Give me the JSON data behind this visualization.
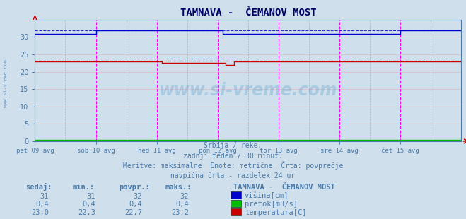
{
  "title": "TAMNAVA -  ČEMANOV MOST",
  "background_color": "#cfe0ec",
  "plot_bg_color": "#cfe0ec",
  "text_color": "#4a7aaa",
  "grid_color_h": "#e8a0a0",
  "grid_color_v": "#ff80ff",
  "watermark": "www.si-vreme.com",
  "subtitle_lines": [
    "Srbija / reke.",
    "zadnji teden / 30 minut.",
    "Meritve: maksimalne  Enote: metrične  Črta: povprečje",
    "navpična črta - razdelek 24 ur"
  ],
  "x_tick_labels": [
    "pet 09 avg",
    "sob 10 avg",
    "ned 11 avg",
    "pon 12 avg",
    "tor 13 avg",
    "sre 14 avg",
    "čet 15 avg"
  ],
  "x_tick_positions": [
    0,
    48,
    96,
    144,
    192,
    240,
    288
  ],
  "ylim": [
    0,
    35
  ],
  "yticks": [
    0,
    5,
    10,
    15,
    20,
    25,
    30
  ],
  "xlim": [
    0,
    336
  ],
  "n_points": 337,
  "blue_line_color": "#0000cc",
  "green_line_color": "#00bb00",
  "red_line_color": "#cc0000",
  "magenta_vline_color": "#ff00ff",
  "gray_vline_color": "#888888",
  "title_color": "#000066",
  "legend_station": "TAMNAVA -  ČEMANOV MOST",
  "legend_items": [
    {
      "label": "višina[cm]",
      "color": "#0000cc"
    },
    {
      "label": "pretok[m3/s]",
      "color": "#00bb00"
    },
    {
      "label": "temperatura[C]",
      "color": "#cc0000"
    }
  ],
  "table_headers": [
    "sedaj:",
    "min.:",
    "povpr.:",
    "maks.:"
  ],
  "table_data": [
    [
      "31",
      "31",
      "32",
      "32"
    ],
    [
      "0,4",
      "0,4",
      "0,4",
      "0,4"
    ],
    [
      "23,0",
      "22,3",
      "22,7",
      "23,2"
    ]
  ]
}
